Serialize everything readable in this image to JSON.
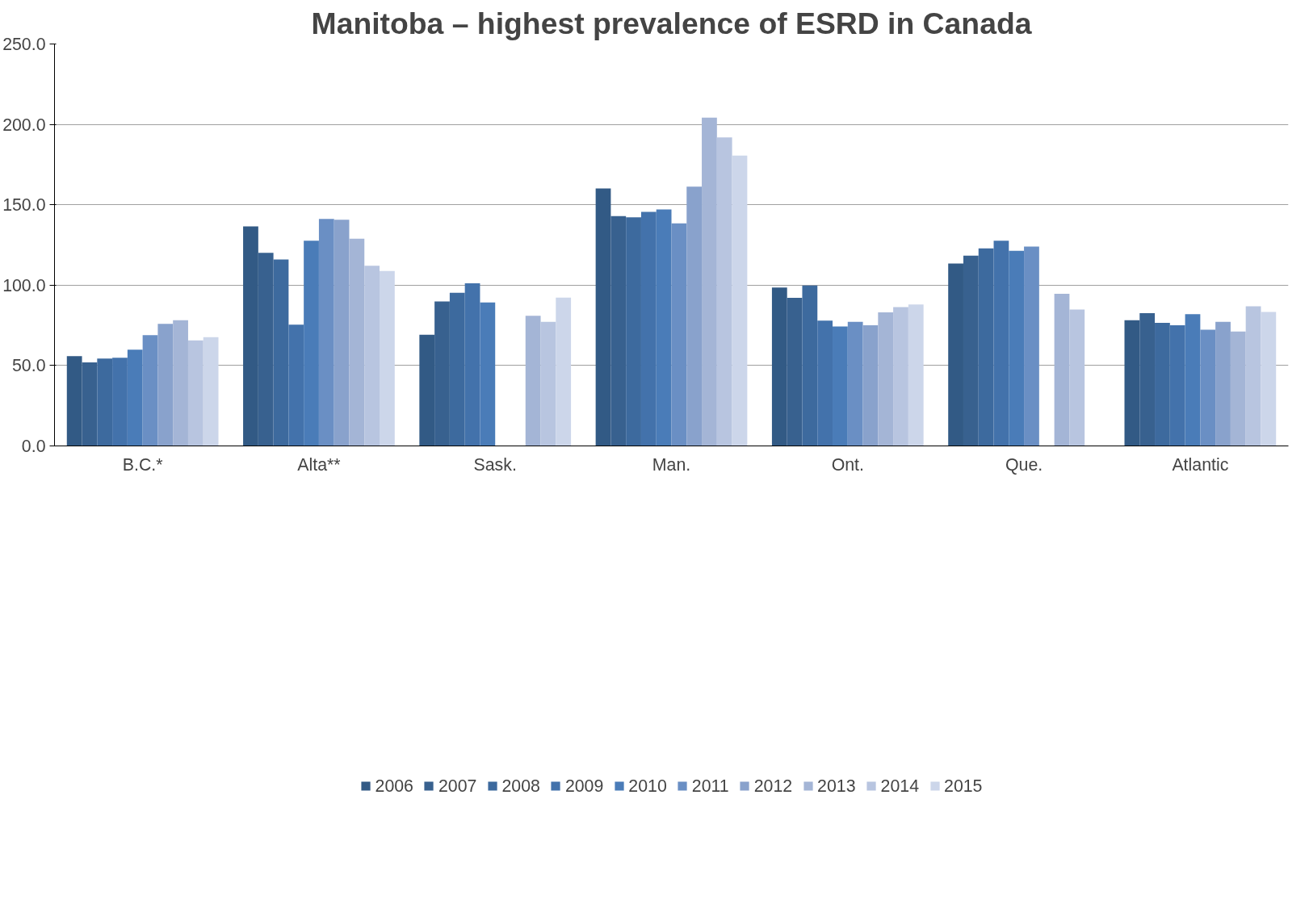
{
  "chart_data": {
    "type": "bar",
    "title": "Manitoba – highest prevalence of ESRD in Canada",
    "categories": [
      "B.C.*",
      "Alta**",
      "Sask.",
      "Man.",
      "Ont.",
      "Que.",
      "Atlantic"
    ],
    "series": [
      {
        "name": "2006",
        "color": "#325a85",
        "values": [
          55.8,
          136.6,
          69.2,
          160.2,
          98.5,
          113.4,
          78.2
        ]
      },
      {
        "name": "2007",
        "color": "#38618f",
        "values": [
          52.0,
          120.1,
          89.8,
          143.0,
          92.1,
          118.3,
          82.6
        ]
      },
      {
        "name": "2008",
        "color": "#3d6a9e",
        "values": [
          54.3,
          116.0,
          95.2,
          142.2,
          99.8,
          122.9,
          76.6
        ]
      },
      {
        "name": "2009",
        "color": "#4372ab",
        "values": [
          54.8,
          75.4,
          101.1,
          145.6,
          77.9,
          127.6,
          75.1
        ]
      },
      {
        "name": "2010",
        "color": "#4a7cb8",
        "values": [
          59.9,
          127.6,
          89.2,
          147.1,
          74.3,
          121.4,
          82.0
        ]
      },
      {
        "name": "2011",
        "color": "#6a8fc4",
        "values": [
          68.9,
          141.2,
          null,
          138.4,
          77.2,
          124.0,
          72.3
        ]
      },
      {
        "name": "2012",
        "color": "#89a2cc",
        "values": [
          75.9,
          140.7,
          null,
          161.3,
          75.1,
          null,
          77.2
        ]
      },
      {
        "name": "2013",
        "color": "#a4b5d6",
        "values": [
          78.2,
          128.9,
          81.0,
          204.2,
          83.1,
          94.6,
          71.2
        ]
      },
      {
        "name": "2014",
        "color": "#b8c5e0",
        "values": [
          65.6,
          112.1,
          77.2,
          191.9,
          86.4,
          84.9,
          86.9
        ]
      },
      {
        "name": "2015",
        "color": "#ccd6ea",
        "values": [
          67.6,
          108.8,
          92.3,
          180.6,
          88.0,
          null,
          83.3
        ]
      }
    ],
    "ylim": [
      0,
      250
    ],
    "yticks": [
      {
        "value": 0,
        "label": "0.0"
      },
      {
        "value": 50,
        "label": "50.0"
      },
      {
        "value": 100,
        "label": "100.0"
      },
      {
        "value": 150,
        "label": "150.0"
      },
      {
        "value": 200,
        "label": "200.0"
      },
      {
        "value": 250,
        "label": "250.0"
      }
    ],
    "grid": "y",
    "legend": "bottom"
  }
}
